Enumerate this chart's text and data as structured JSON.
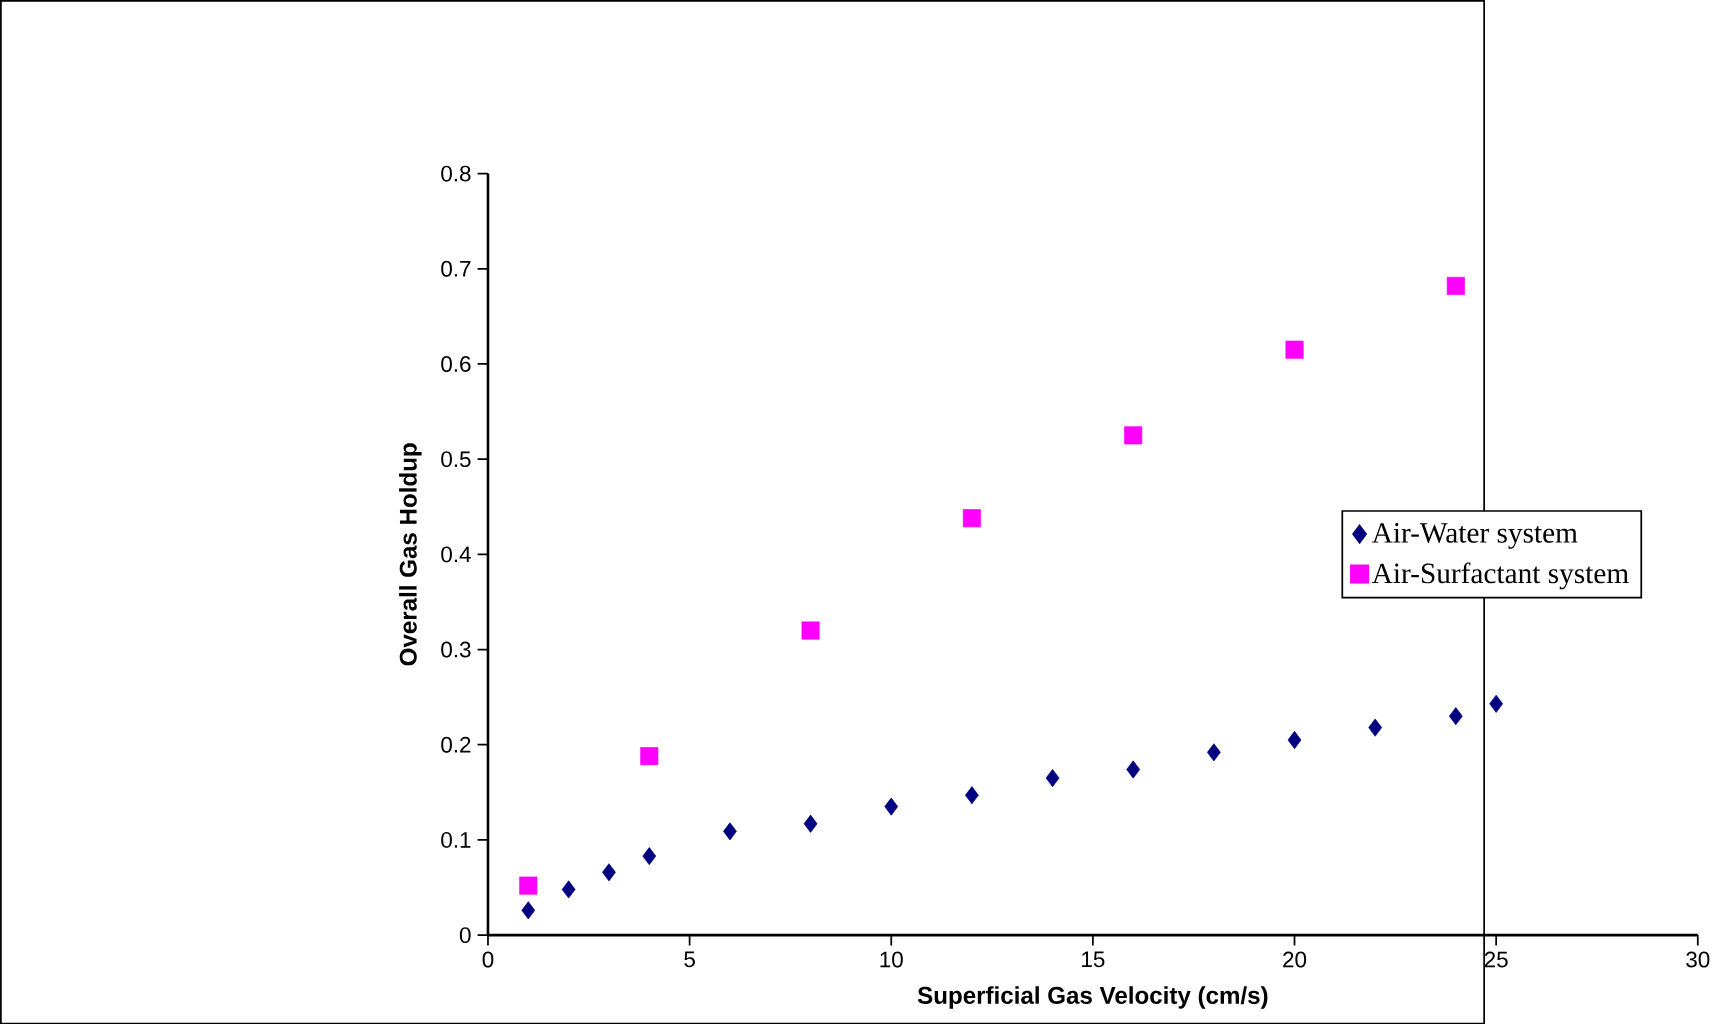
{
  "chart_data": {
    "type": "scatter",
    "xlabel": "Superficial Gas Velocity (cm/s)",
    "ylabel": "Overall Gas Holdup",
    "xlim": [
      0,
      30
    ],
    "xticks": [
      0,
      5,
      10,
      15,
      20,
      25,
      30
    ],
    "ylim": [
      0,
      0.8
    ],
    "yticks": [
      0,
      0.1,
      0.2,
      0.3,
      0.4,
      0.5,
      0.6,
      0.7,
      0.8
    ],
    "grid": false,
    "legend": "right",
    "series": [
      {
        "name": "Air-Water system",
        "color": "#000080",
        "marker": "diamond",
        "x": [
          1,
          2,
          3,
          4,
          6,
          8,
          10,
          12,
          14,
          16,
          18,
          20,
          22,
          24,
          25
        ],
        "values": [
          0.026,
          0.048,
          0.066,
          0.083,
          0.109,
          0.117,
          0.135,
          0.147,
          0.165,
          0.174,
          0.192,
          0.205,
          0.218,
          0.23,
          0.243
        ]
      },
      {
        "name": "Air-Surfactant system",
        "color": "#ff00ff",
        "marker": "square",
        "x": [
          1,
          4,
          8,
          12,
          16,
          20,
          24
        ],
        "values": [
          0.052,
          0.188,
          0.32,
          0.438,
          0.525,
          0.615,
          0.682
        ]
      }
    ]
  }
}
